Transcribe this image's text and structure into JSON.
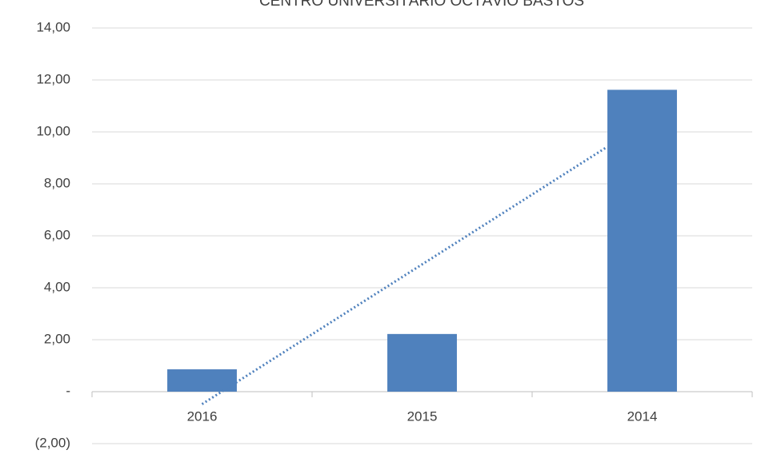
{
  "chart_data": {
    "type": "bar",
    "title": "CENTRO UNIVERSITÁRIO OCTÁVIO BASTOS",
    "categories": [
      "2016",
      "2015",
      "2014"
    ],
    "values": [
      0.86,
      2.22,
      11.62
    ],
    "color": "#4f81bd",
    "trendline": true,
    "ylim": [
      -2,
      14
    ],
    "yticks": [
      {
        "value": -2,
        "label": "(2,00)"
      },
      {
        "value": 0,
        "label": "-"
      },
      {
        "value": 2,
        "label": "2,00"
      },
      {
        "value": 4,
        "label": "4,00"
      },
      {
        "value": 6,
        "label": "6,00"
      },
      {
        "value": 8,
        "label": "8,00"
      },
      {
        "value": 10,
        "label": "10,00"
      },
      {
        "value": 12,
        "label": "12,00"
      },
      {
        "value": 14,
        "label": "14,00"
      }
    ],
    "grid": true
  }
}
